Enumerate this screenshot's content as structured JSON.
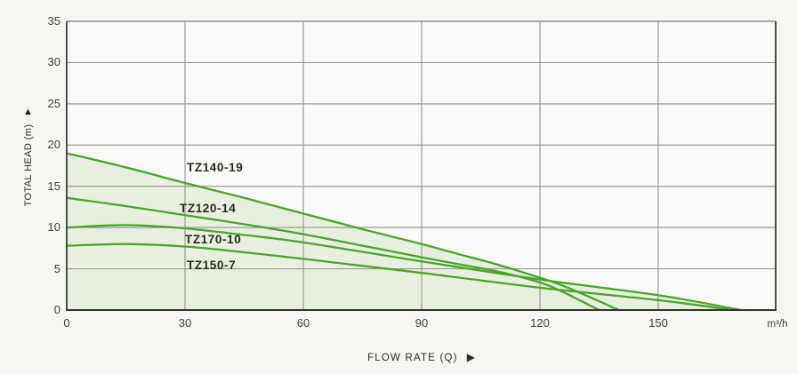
{
  "chart_data": {
    "type": "line",
    "title": "",
    "xlabel": "FLOW RATE (Q)",
    "ylabel": "TOTAL HEAD (m)",
    "x_unit": "m³/h",
    "xlim": [
      0,
      180
    ],
    "ylim": [
      0,
      35
    ],
    "x_ticks": [
      0,
      30,
      60,
      90,
      120,
      150
    ],
    "y_ticks": [
      0,
      5,
      10,
      15,
      20,
      25,
      30,
      35
    ],
    "grid": true,
    "legend_position": "inline-labels",
    "series": [
      {
        "name": "TZ140-19",
        "points": [
          [
            0,
            19.0
          ],
          [
            15,
            17.3
          ],
          [
            30,
            15.4
          ],
          [
            45,
            13.6
          ],
          [
            60,
            11.7
          ],
          [
            75,
            9.8
          ],
          [
            90,
            8.0
          ],
          [
            100,
            6.7
          ],
          [
            110,
            5.4
          ],
          [
            125,
            3.1
          ],
          [
            140,
            0
          ]
        ]
      },
      {
        "name": "TZ120-14",
        "points": [
          [
            0,
            13.6
          ],
          [
            15,
            12.6
          ],
          [
            30,
            11.5
          ],
          [
            45,
            10.4
          ],
          [
            60,
            9.2
          ],
          [
            75,
            7.8
          ],
          [
            90,
            6.4
          ],
          [
            100,
            5.5
          ],
          [
            110,
            4.6
          ],
          [
            122,
            3.0
          ],
          [
            135,
            0
          ]
        ]
      },
      {
        "name": "TZ170-10",
        "points": [
          [
            0,
            10.0
          ],
          [
            15,
            10.3
          ],
          [
            30,
            9.9
          ],
          [
            45,
            9.1
          ],
          [
            60,
            8.2
          ],
          [
            90,
            5.9
          ],
          [
            120,
            3.7
          ],
          [
            150,
            1.8
          ],
          [
            171,
            0
          ]
        ]
      },
      {
        "name": "TZ150-7",
        "points": [
          [
            0,
            7.8
          ],
          [
            15,
            8.0
          ],
          [
            30,
            7.7
          ],
          [
            45,
            7.0
          ],
          [
            60,
            6.2
          ],
          [
            90,
            4.5
          ],
          [
            120,
            2.7
          ],
          [
            150,
            1.2
          ],
          [
            169,
            0
          ]
        ]
      }
    ],
    "colors": {
      "line": "#4ca32f",
      "area_fill": "#e7f0df",
      "grid": "#9b9894",
      "axis_dark": "#36322d",
      "border_top": "#8f8c88",
      "plot_bg": "#fafaf8",
      "canvas_bg": "#f5f5f2",
      "text": "#44403a"
    }
  },
  "icons": {
    "y_axis_arrow": "▲",
    "x_axis_arrow": "▶"
  }
}
